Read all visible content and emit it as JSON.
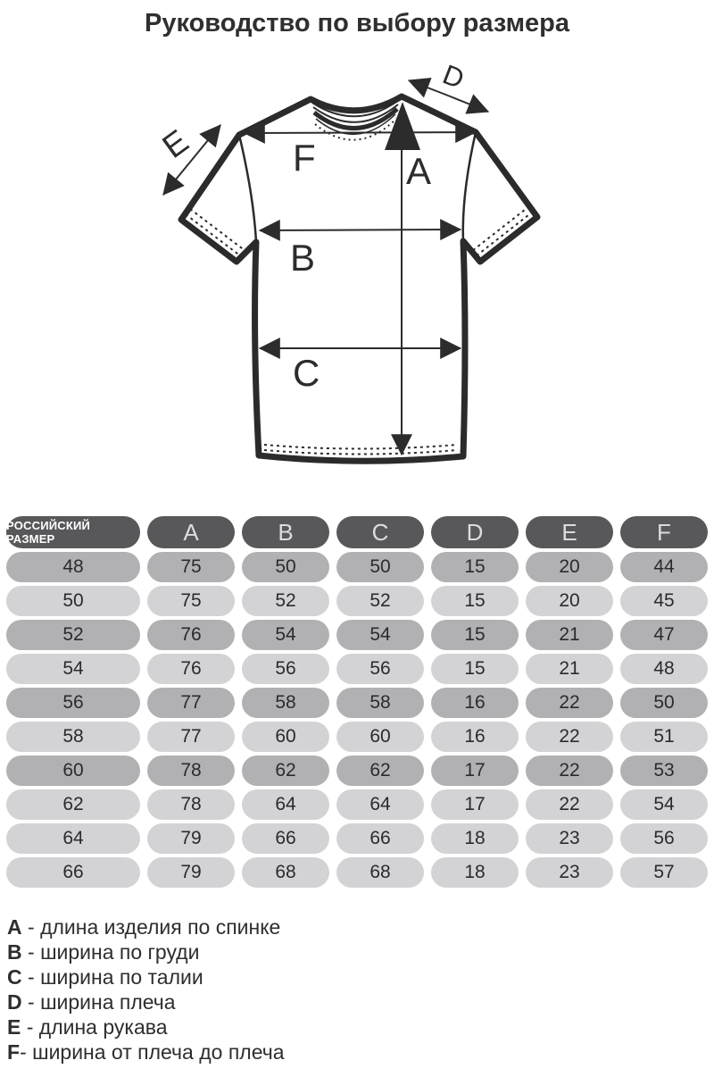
{
  "title": "Руководство по выбору размера",
  "diagram": {
    "labels": {
      "a": "A",
      "b": "B",
      "c": "C",
      "d": "D",
      "e": "E",
      "f": "F"
    }
  },
  "table": {
    "headers": [
      "РОССИЙСКИЙ РАЗМЕР",
      "A",
      "B",
      "C",
      "D",
      "E",
      "F"
    ],
    "rows": [
      {
        "size": "48",
        "values": [
          "75",
          "50",
          "50",
          "15",
          "20",
          "44"
        ],
        "shade": "dark"
      },
      {
        "size": "50",
        "values": [
          "75",
          "52",
          "52",
          "15",
          "20",
          "45"
        ],
        "shade": "light"
      },
      {
        "size": "52",
        "values": [
          "76",
          "54",
          "54",
          "15",
          "21",
          "47"
        ],
        "shade": "dark"
      },
      {
        "size": "54",
        "values": [
          "76",
          "56",
          "56",
          "15",
          "21",
          "48"
        ],
        "shade": "light"
      },
      {
        "size": "56",
        "values": [
          "77",
          "58",
          "58",
          "16",
          "22",
          "50"
        ],
        "shade": "dark"
      },
      {
        "size": "58",
        "values": [
          "77",
          "60",
          "60",
          "16",
          "22",
          "51"
        ],
        "shade": "light"
      },
      {
        "size": "60",
        "values": [
          "78",
          "62",
          "62",
          "17",
          "22",
          "53"
        ],
        "shade": "dark"
      },
      {
        "size": "62",
        "values": [
          "78",
          "64",
          "64",
          "17",
          "22",
          "54"
        ],
        "shade": "light"
      },
      {
        "size": "64",
        "values": [
          "79",
          "66",
          "66",
          "18",
          "23",
          "56"
        ],
        "shade": "light"
      },
      {
        "size": "66",
        "values": [
          "79",
          "68",
          "68",
          "18",
          "23",
          "57"
        ],
        "shade": "light"
      }
    ]
  },
  "legend": [
    {
      "letter": "A",
      "text": " - длина изделия по спинке"
    },
    {
      "letter": "B",
      "text": " - ширина по груди"
    },
    {
      "letter": "C",
      "text": " - ширина по талии"
    },
    {
      "letter": "D",
      "text": " - ширина плеча"
    },
    {
      "letter": "E",
      "text": " - длина рукава"
    },
    {
      "letter": "F",
      "text": "- ширина от плеча до плеча"
    }
  ],
  "colors": {
    "ink": "#2c2c2c",
    "header_bg": "#58585b",
    "row_dark": "#b1b1b3",
    "row_light": "#d3d3d5",
    "background": "#ffffff"
  }
}
